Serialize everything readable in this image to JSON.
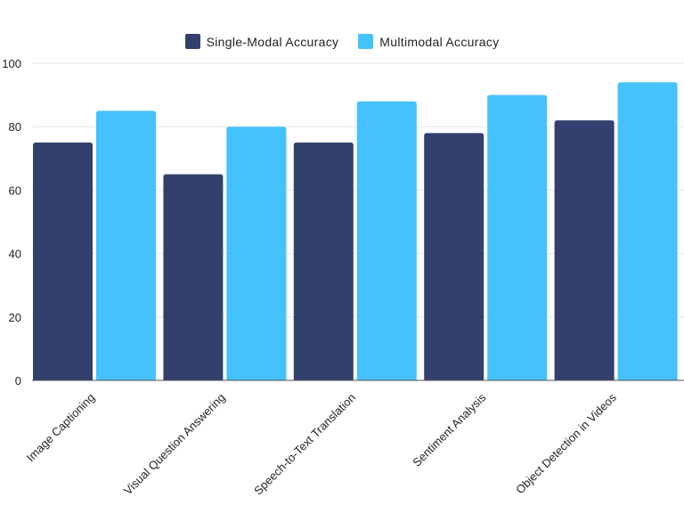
{
  "chart_data": {
    "type": "bar",
    "title": "",
    "xlabel": "",
    "ylabel": "",
    "categories": [
      "Image Captioning",
      "Visual Question Answering",
      "Speech-to-Text Translation",
      "Sentiment Analysis",
      "Object Detection in Videos"
    ],
    "series": [
      {
        "name": "Single-Modal Accuracy",
        "color": "#33406e",
        "values": [
          75,
          65,
          75,
          78,
          82
        ]
      },
      {
        "name": "Multimodal Accuracy",
        "color": "#45c1fb",
        "values": [
          85,
          80,
          88,
          90,
          94
        ]
      }
    ],
    "ylim": [
      0,
      100
    ],
    "yticks": [
      0,
      20,
      40,
      60,
      80,
      100
    ],
    "grid": true,
    "legend_position": "top-center"
  }
}
